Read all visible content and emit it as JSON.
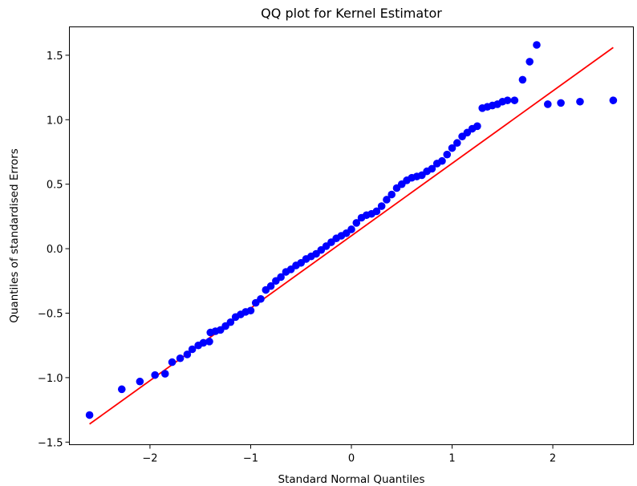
{
  "chart_data": {
    "type": "scatter",
    "title": "QQ plot for Kernel Estimator",
    "xlabel": "Standard Normal Quantiles",
    "ylabel": "Quantiles of standardised Errors",
    "xlim": [
      -2.8,
      2.8
    ],
    "ylim": [
      -1.52,
      1.72
    ],
    "xticks": [
      -2,
      -1,
      0,
      1,
      2
    ],
    "xtick_labels": [
      "−2",
      "−1",
      "0",
      "1",
      "2"
    ],
    "yticks": [
      -1.5,
      -1.0,
      -0.5,
      0.0,
      0.5,
      1.0,
      1.5
    ],
    "ytick_labels": [
      "−1.5",
      "−1.0",
      "−0.5",
      "0.0",
      "0.5",
      "1.0",
      "1.5"
    ],
    "grid": false,
    "point_color": "#0000ff",
    "line_color": "#ff0000",
    "reference_line": {
      "x": [
        -2.6,
        2.6
      ],
      "y": [
        -1.36,
        1.56
      ]
    },
    "points": {
      "x": [
        -2.6,
        -2.28,
        -2.1,
        -1.95,
        -1.85,
        -1.78,
        -1.7,
        -1.63,
        -1.58,
        -1.52,
        -1.47,
        -1.41,
        -1.4,
        -1.35,
        -1.3,
        -1.25,
        -1.2,
        -1.15,
        -1.1,
        -1.05,
        -1.0,
        -0.95,
        -0.9,
        -0.85,
        -0.8,
        -0.75,
        -0.7,
        -0.65,
        -0.6,
        -0.55,
        -0.5,
        -0.45,
        -0.4,
        -0.35,
        -0.3,
        -0.25,
        -0.2,
        -0.15,
        -0.1,
        -0.05,
        0.0,
        0.05,
        0.1,
        0.15,
        0.2,
        0.25,
        0.3,
        0.35,
        0.4,
        0.45,
        0.5,
        0.55,
        0.6,
        0.65,
        0.7,
        0.75,
        0.8,
        0.85,
        0.9,
        0.95,
        1.0,
        1.05,
        1.1,
        1.15,
        1.2,
        1.25,
        1.3,
        1.35,
        1.4,
        1.45,
        1.5,
        1.55,
        1.62,
        1.7,
        1.77,
        1.84,
        1.95,
        2.08,
        2.27,
        2.6
      ],
      "y": [
        -1.29,
        -1.09,
        -1.03,
        -0.98,
        -0.97,
        -0.88,
        -0.85,
        -0.82,
        -0.78,
        -0.75,
        -0.73,
        -0.72,
        -0.65,
        -0.64,
        -0.63,
        -0.6,
        -0.57,
        -0.53,
        -0.51,
        -0.49,
        -0.48,
        -0.42,
        -0.39,
        -0.32,
        -0.29,
        -0.25,
        -0.22,
        -0.18,
        -0.16,
        -0.13,
        -0.11,
        -0.08,
        -0.06,
        -0.04,
        -0.01,
        0.02,
        0.05,
        0.08,
        0.1,
        0.12,
        0.15,
        0.2,
        0.24,
        0.26,
        0.27,
        0.29,
        0.33,
        0.38,
        0.42,
        0.47,
        0.5,
        0.53,
        0.55,
        0.56,
        0.57,
        0.6,
        0.62,
        0.66,
        0.68,
        0.73,
        0.78,
        0.82,
        0.87,
        0.9,
        0.93,
        0.95,
        1.09,
        1.1,
        1.11,
        1.12,
        1.14,
        1.15,
        1.15,
        1.31,
        1.45,
        1.58,
        1.12,
        1.13,
        1.14,
        1.15
      ],
      "radius": 4.8
    }
  }
}
